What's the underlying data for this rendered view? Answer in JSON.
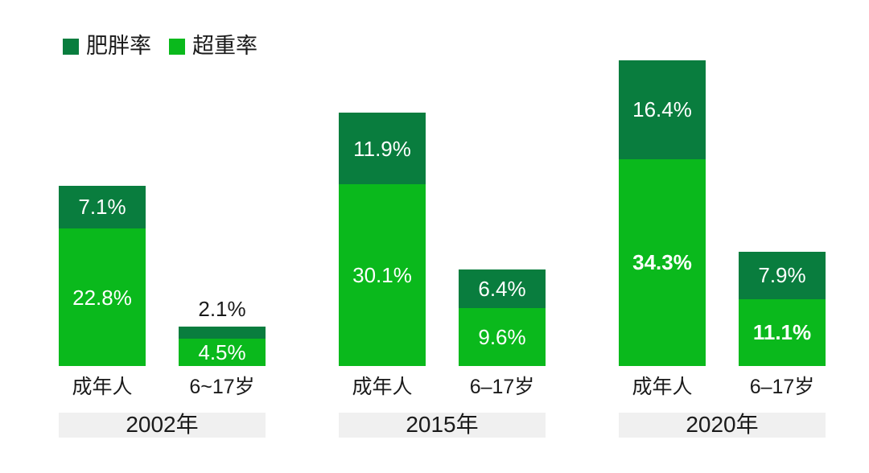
{
  "legend": {
    "items": [
      {
        "id": "obesity",
        "label": "肥胖率",
        "color": "#097d3e"
      },
      {
        "id": "overweight",
        "label": "超重率",
        "color": "#0ab91c"
      }
    ]
  },
  "chart_data": {
    "type": "bar",
    "stacked": true,
    "value_unit": "%",
    "series": [
      "肥胖率",
      "超重率"
    ],
    "series_ids": [
      "obesity",
      "overweight"
    ],
    "series_colors": {
      "肥胖率": "#097d3e",
      "超重率": "#0ab91c"
    },
    "band_color": "#f0f0f0",
    "value_label_color_inside": "#ffffff",
    "value_label_color_outside": "#1a1a1a",
    "legend_position": "top-left",
    "axes": {
      "y_axis_visible": false,
      "gridlines": false
    },
    "ylim": [
      0,
      55
    ],
    "groups": [
      {
        "year_label": "2002年",
        "bars": [
          {
            "id": "adults",
            "category": "成年人",
            "segments": [
              {
                "series": "肥胖率",
                "value": 7.1,
                "label": "7.1%"
              },
              {
                "series": "超重率",
                "value": 22.8,
                "label": "22.8%"
              }
            ]
          },
          {
            "id": "children-6-17",
            "category": "6~17岁",
            "segments": [
              {
                "series": "肥胖率",
                "value": 2.1,
                "label": "2.1%",
                "label_position": "above"
              },
              {
                "series": "超重率",
                "value": 4.5,
                "label": "4.5%"
              }
            ]
          }
        ]
      },
      {
        "year_label": "2015年",
        "bars": [
          {
            "id": "adults",
            "category": "成年人",
            "segments": [
              {
                "series": "肥胖率",
                "value": 11.9,
                "label": "11.9%"
              },
              {
                "series": "超重率",
                "value": 30.1,
                "label": "30.1%"
              }
            ]
          },
          {
            "id": "children-6-17",
            "category": "6–17岁",
            "segments": [
              {
                "series": "肥胖率",
                "value": 6.4,
                "label": "6.4%"
              },
              {
                "series": "超重率",
                "value": 9.6,
                "label": "9.6%"
              }
            ]
          }
        ]
      },
      {
        "year_label": "2020年",
        "bars": [
          {
            "id": "adults",
            "category": "成年人",
            "segments": [
              {
                "series": "肥胖率",
                "value": 16.4,
                "label": "16.4%"
              },
              {
                "series": "超重率",
                "value": 34.3,
                "label": "34.3%",
                "bold": true
              }
            ]
          },
          {
            "id": "children-6-17",
            "category": "6–17岁",
            "segments": [
              {
                "series": "肥胖率",
                "value": 7.9,
                "label": "7.9%"
              },
              {
                "series": "超重率",
                "value": 11.1,
                "label": "11.1%",
                "bold": true
              }
            ]
          }
        ]
      }
    ]
  }
}
